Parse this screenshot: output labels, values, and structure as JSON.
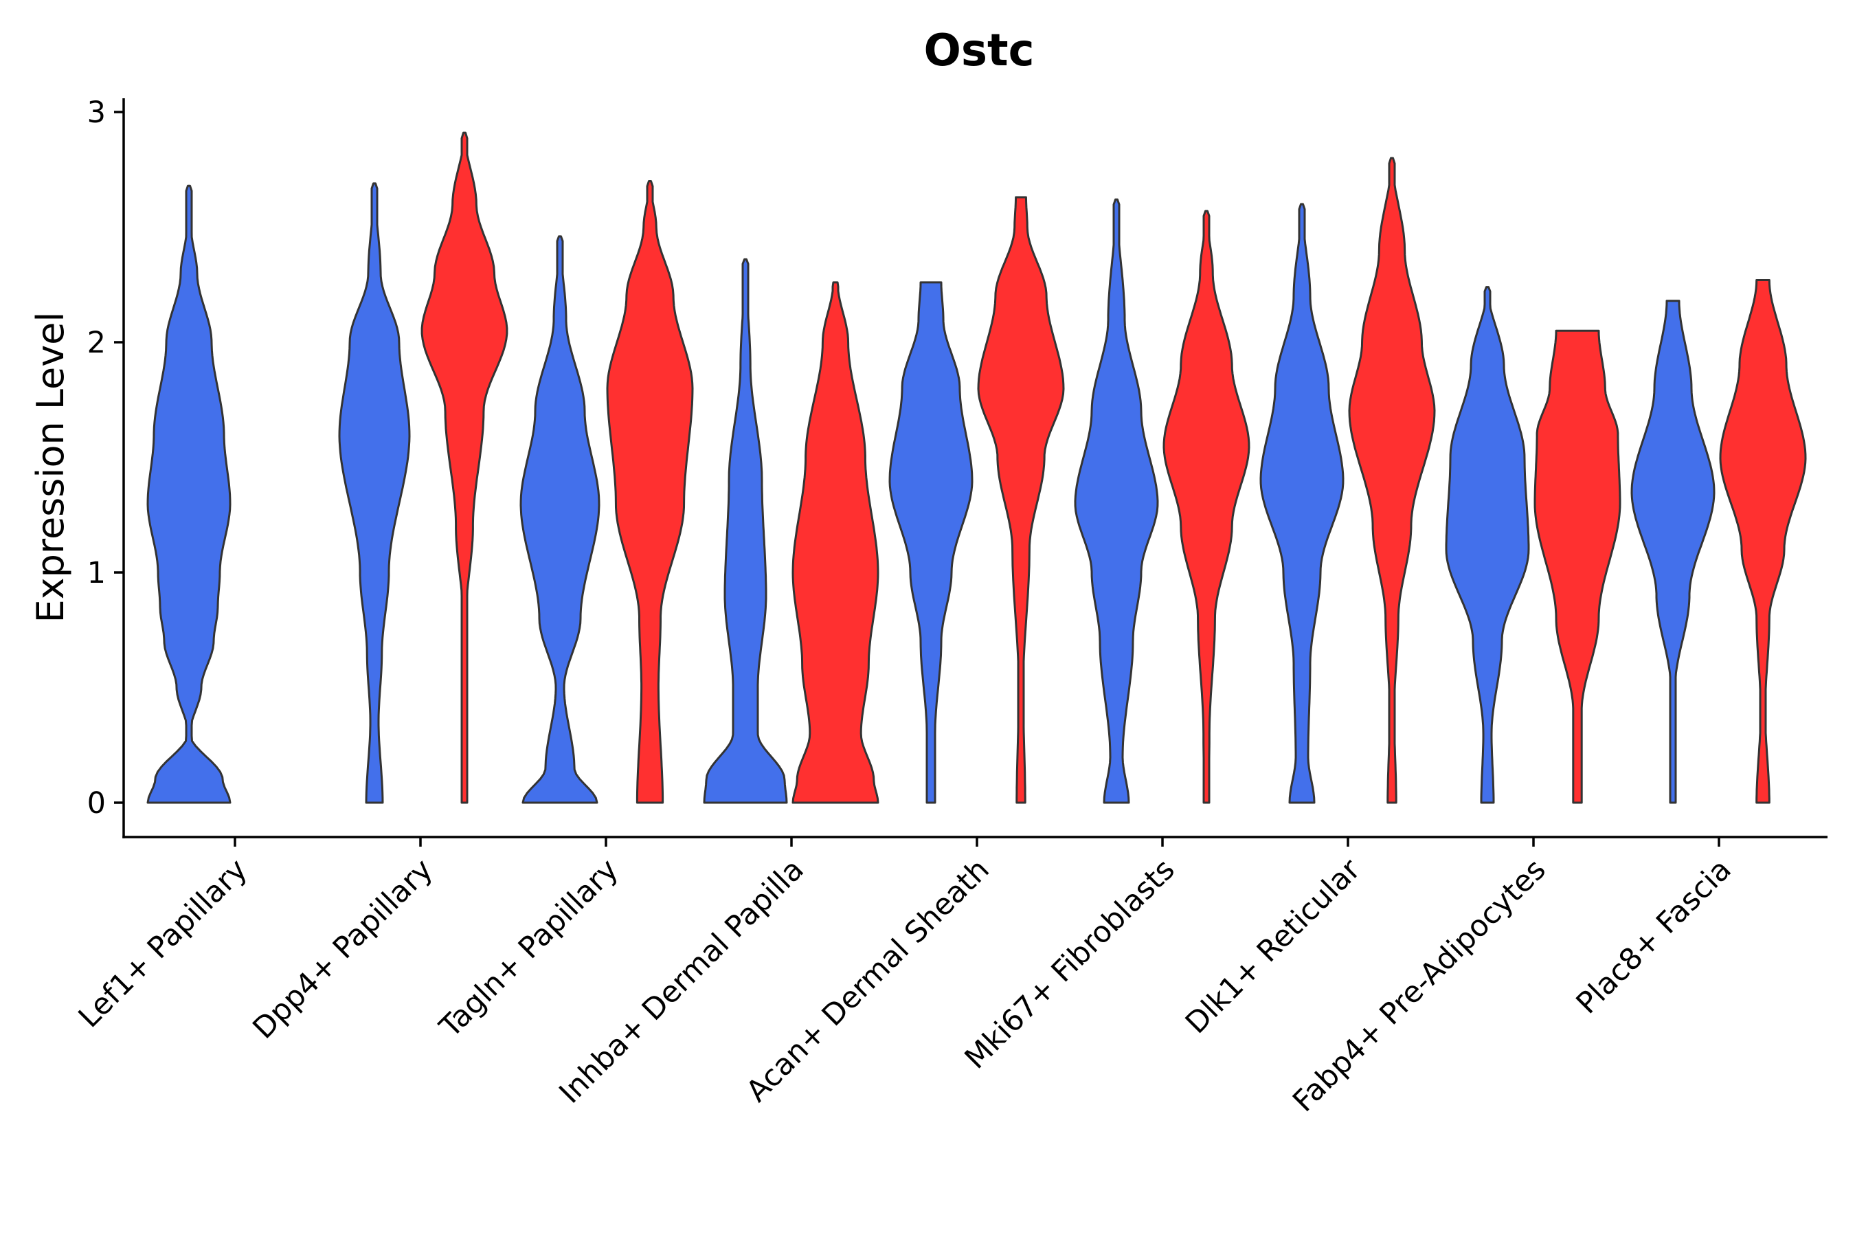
{
  "chart_data": {
    "type": "violin",
    "title": "Ostc",
    "xlabel": "",
    "ylabel": "Expression Level",
    "ylim": [
      -0.15,
      3.05
    ],
    "yticks": [
      0,
      1,
      2,
      3
    ],
    "grid": false,
    "legend": "none",
    "colors": {
      "group_a": "#4370EB",
      "group_b": "#FF3030",
      "outline": "#333333"
    },
    "categories": [
      "Lef1+ Papillary",
      "Dpp4+ Papillary",
      "Tagln+ Papillary",
      "Inhba+ Dermal Papilla",
      "Acan+ Dermal Sheath",
      "Mki67+ Fibroblasts",
      "Dlk1+ Reticular",
      "Fabp4+ Pre-Adipocytes",
      "Plac8+ Fascia"
    ],
    "violins": [
      {
        "category": 0,
        "group": "a",
        "max": 2.68,
        "profile": [
          [
            0,
            1.0
          ],
          [
            0.1,
            0.82
          ],
          [
            0.3,
            0.02
          ],
          [
            0.5,
            0.3
          ],
          [
            0.7,
            0.6
          ],
          [
            0.85,
            0.7
          ],
          [
            1.0,
            0.75
          ],
          [
            1.3,
            1.0
          ],
          [
            1.6,
            0.85
          ],
          [
            2.0,
            0.55
          ],
          [
            2.3,
            0.2
          ],
          [
            2.5,
            0.05
          ],
          [
            2.68,
            0.0
          ]
        ]
      },
      {
        "category": 1,
        "group": "a",
        "max": 2.69,
        "profile": [
          [
            0,
            0.2
          ],
          [
            0.35,
            0.1
          ],
          [
            0.65,
            0.18
          ],
          [
            1.0,
            0.35
          ],
          [
            1.6,
            0.85
          ],
          [
            2.0,
            0.6
          ],
          [
            2.3,
            0.15
          ],
          [
            2.69,
            0.0
          ]
        ]
      },
      {
        "category": 1,
        "group": "b",
        "max": 2.91,
        "profile": [
          [
            0,
            0.03
          ],
          [
            0.8,
            0.03
          ],
          [
            1.2,
            0.2
          ],
          [
            1.7,
            0.45
          ],
          [
            2.05,
            1.0
          ],
          [
            2.3,
            0.7
          ],
          [
            2.6,
            0.28
          ],
          [
            2.91,
            0.0
          ]
        ]
      },
      {
        "category": 2,
        "group": "a",
        "max": 2.46,
        "profile": [
          [
            0,
            0.9
          ],
          [
            0.15,
            0.35
          ],
          [
            0.5,
            0.1
          ],
          [
            0.8,
            0.5
          ],
          [
            1.3,
            0.95
          ],
          [
            1.7,
            0.6
          ],
          [
            2.1,
            0.15
          ],
          [
            2.46,
            0.0
          ]
        ]
      },
      {
        "category": 2,
        "group": "b",
        "max": 2.7,
        "profile": [
          [
            0,
            0.3
          ],
          [
            0.5,
            0.2
          ],
          [
            0.8,
            0.25
          ],
          [
            1.3,
            0.8
          ],
          [
            1.8,
            1.0
          ],
          [
            2.2,
            0.55
          ],
          [
            2.5,
            0.15
          ],
          [
            2.7,
            0.0
          ]
        ]
      },
      {
        "category": 3,
        "group": "a",
        "max": 2.36,
        "profile": [
          [
            0,
            1.0
          ],
          [
            0.1,
            0.95
          ],
          [
            0.3,
            0.3
          ],
          [
            0.5,
            0.3
          ],
          [
            0.9,
            0.5
          ],
          [
            1.4,
            0.4
          ],
          [
            1.9,
            0.12
          ],
          [
            2.36,
            0.0
          ]
        ]
      },
      {
        "category": 3,
        "group": "b",
        "max": 2.26,
        "profile": [
          [
            0,
            1.0
          ],
          [
            0.1,
            0.9
          ],
          [
            0.3,
            0.6
          ],
          [
            0.6,
            0.78
          ],
          [
            1.0,
            1.0
          ],
          [
            1.5,
            0.7
          ],
          [
            2.0,
            0.3
          ],
          [
            2.26,
            0.05
          ]
        ]
      },
      {
        "category": 4,
        "group": "a",
        "max": 2.26,
        "profile": [
          [
            0,
            0.1
          ],
          [
            0.3,
            0.1
          ],
          [
            0.7,
            0.25
          ],
          [
            1.0,
            0.5
          ],
          [
            1.4,
            1.0
          ],
          [
            1.8,
            0.7
          ],
          [
            2.1,
            0.3
          ],
          [
            2.26,
            0.25
          ]
        ]
      },
      {
        "category": 4,
        "group": "b",
        "max": 2.63,
        "profile": [
          [
            0,
            0.1
          ],
          [
            0.5,
            0.05
          ],
          [
            1.1,
            0.2
          ],
          [
            1.5,
            0.55
          ],
          [
            1.8,
            1.0
          ],
          [
            2.2,
            0.6
          ],
          [
            2.5,
            0.15
          ],
          [
            2.63,
            0.12
          ]
        ]
      },
      {
        "category": 5,
        "group": "a",
        "max": 2.62,
        "profile": [
          [
            0,
            0.3
          ],
          [
            0.2,
            0.15
          ],
          [
            0.7,
            0.4
          ],
          [
            1.0,
            0.6
          ],
          [
            1.3,
            1.0
          ],
          [
            1.7,
            0.6
          ],
          [
            2.1,
            0.2
          ],
          [
            2.62,
            0.0
          ]
        ]
      },
      {
        "category": 5,
        "group": "b",
        "max": 2.57,
        "profile": [
          [
            0,
            0.05
          ],
          [
            0.3,
            0.07
          ],
          [
            0.8,
            0.2
          ],
          [
            1.2,
            0.6
          ],
          [
            1.55,
            1.0
          ],
          [
            1.9,
            0.6
          ],
          [
            2.3,
            0.15
          ],
          [
            2.57,
            0.0
          ]
        ]
      },
      {
        "category": 6,
        "group": "a",
        "max": 2.6,
        "profile": [
          [
            0,
            0.3
          ],
          [
            0.2,
            0.15
          ],
          [
            0.6,
            0.2
          ],
          [
            1.0,
            0.45
          ],
          [
            1.4,
            1.0
          ],
          [
            1.8,
            0.65
          ],
          [
            2.2,
            0.2
          ],
          [
            2.6,
            0.0
          ]
        ]
      },
      {
        "category": 6,
        "group": "b",
        "max": 2.8,
        "profile": [
          [
            0,
            0.1
          ],
          [
            0.4,
            0.05
          ],
          [
            0.8,
            0.15
          ],
          [
            1.2,
            0.45
          ],
          [
            1.7,
            1.0
          ],
          [
            2.0,
            0.7
          ],
          [
            2.4,
            0.3
          ],
          [
            2.8,
            0.0
          ]
        ]
      },
      {
        "category": 7,
        "group": "a",
        "max": 2.24,
        "profile": [
          [
            0,
            0.15
          ],
          [
            0.3,
            0.1
          ],
          [
            0.7,
            0.35
          ],
          [
            1.1,
            1.0
          ],
          [
            1.5,
            0.9
          ],
          [
            1.9,
            0.4
          ],
          [
            2.24,
            0.0
          ]
        ]
      },
      {
        "category": 7,
        "group": "b",
        "max": 2.05,
        "profile": [
          [
            0,
            0.1
          ],
          [
            0.4,
            0.1
          ],
          [
            0.8,
            0.5
          ],
          [
            1.3,
            1.0
          ],
          [
            1.6,
            0.95
          ],
          [
            1.8,
            0.65
          ],
          [
            2.05,
            0.5
          ]
        ]
      },
      {
        "category": 8,
        "group": "a",
        "max": 2.18,
        "profile": [
          [
            0,
            0.05
          ],
          [
            0.5,
            0.05
          ],
          [
            0.9,
            0.4
          ],
          [
            1.35,
            1.0
          ],
          [
            1.8,
            0.45
          ],
          [
            2.18,
            0.15
          ]
        ]
      },
      {
        "category": 8,
        "group": "b",
        "max": 2.27,
        "profile": [
          [
            0,
            0.15
          ],
          [
            0.4,
            0.05
          ],
          [
            0.8,
            0.15
          ],
          [
            1.1,
            0.5
          ],
          [
            1.5,
            1.0
          ],
          [
            1.9,
            0.55
          ],
          [
            2.27,
            0.15
          ]
        ]
      }
    ]
  }
}
